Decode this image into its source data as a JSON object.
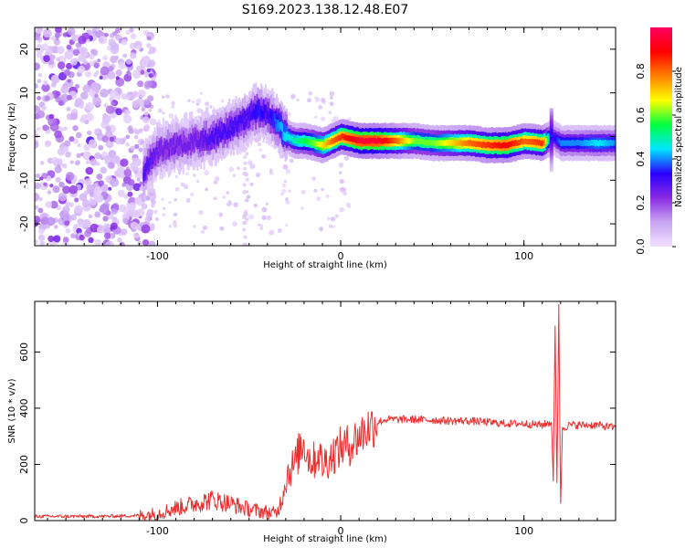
{
  "title": "S169.2023.138.12.48.E07",
  "chart_data": [
    {
      "type": "heatmap",
      "xlabel": "Height of straight line (km)",
      "ylabel": "Frequency (Hz)",
      "xlim": [
        -167,
        150
      ],
      "ylim": [
        -25,
        25
      ],
      "xticks": [
        -100,
        0,
        100
      ],
      "yticks": [
        -20,
        -10,
        0,
        10,
        20
      ],
      "colorbar": {
        "label": "Normalized spectral amplitude",
        "range": [
          0,
          1
        ],
        "ticks": [
          "0.0",
          "0.2",
          "0.4",
          "0.6",
          "0.8"
        ],
        "colors": [
          "#f0e0ff",
          "#c9a6f2",
          "#8a2be2",
          "#2a00ff",
          "#00e5ff",
          "#00ff40",
          "#ffff00",
          "#ff8000",
          "#ff0000",
          "#ff0060"
        ]
      },
      "ridge": {
        "x": [
          -108,
          -100,
          -90,
          -80,
          -70,
          -60,
          -55,
          -50,
          -45,
          -40,
          -35,
          -30,
          -25,
          -20,
          -15,
          -10,
          -5,
          0,
          10,
          20,
          30,
          40,
          50,
          60,
          70,
          80,
          90,
          100,
          110,
          115,
          120,
          130,
          140,
          150
        ],
        "y": [
          -8,
          -3,
          -2,
          -1,
          0,
          2,
          3,
          5,
          6,
          5,
          3,
          0,
          -1,
          -1,
          -1.5,
          -2,
          -1,
          0,
          -1,
          -1,
          -1,
          -1,
          -1.5,
          -1.5,
          -1.5,
          -2,
          -2,
          -1,
          -1.5,
          0,
          -1.5,
          -1.5,
          -1.5,
          -1.5
        ],
        "amplitude": [
          0.3,
          0.25,
          0.25,
          0.25,
          0.3,
          0.3,
          0.3,
          0.3,
          0.35,
          0.3,
          0.4,
          0.45,
          0.5,
          0.55,
          0.6,
          0.7,
          0.8,
          0.85,
          0.95,
          0.95,
          0.8,
          0.6,
          0.6,
          0.7,
          0.8,
          0.85,
          0.9,
          0.8,
          0.85,
          0.3,
          0.4,
          0.4,
          0.45,
          0.4
        ]
      }
    },
    {
      "type": "line",
      "xlabel": "Height of straight line (km)",
      "ylabel": "SNR (10 * v/v)",
      "xlim": [
        -167,
        150
      ],
      "ylim": [
        0,
        780
      ],
      "xticks": [
        -100,
        0,
        100
      ],
      "yticks": [
        0,
        200,
        400,
        600
      ],
      "color": "#e8312f",
      "x": [
        -167,
        -150,
        -130,
        -110,
        -100,
        -95,
        -90,
        -80,
        -70,
        -60,
        -50,
        -40,
        -35,
        -32,
        -30,
        -28,
        -25,
        -22,
        -20,
        -18,
        -15,
        -12,
        -10,
        -5,
        0,
        5,
        10,
        15,
        20,
        25,
        30,
        40,
        50,
        60,
        70,
        80,
        90,
        100,
        110,
        115,
        116,
        117,
        118,
        119,
        120,
        121,
        125,
        130,
        140,
        150
      ],
      "y": [
        15,
        15,
        15,
        18,
        25,
        35,
        45,
        60,
        75,
        60,
        40,
        30,
        25,
        80,
        150,
        180,
        200,
        260,
        280,
        230,
        210,
        240,
        200,
        230,
        260,
        270,
        300,
        330,
        350,
        360,
        360,
        360,
        358,
        355,
        355,
        350,
        345,
        345,
        340,
        350,
        150,
        680,
        130,
        770,
        50,
        330,
        340,
        340,
        340,
        330
      ]
    }
  ]
}
